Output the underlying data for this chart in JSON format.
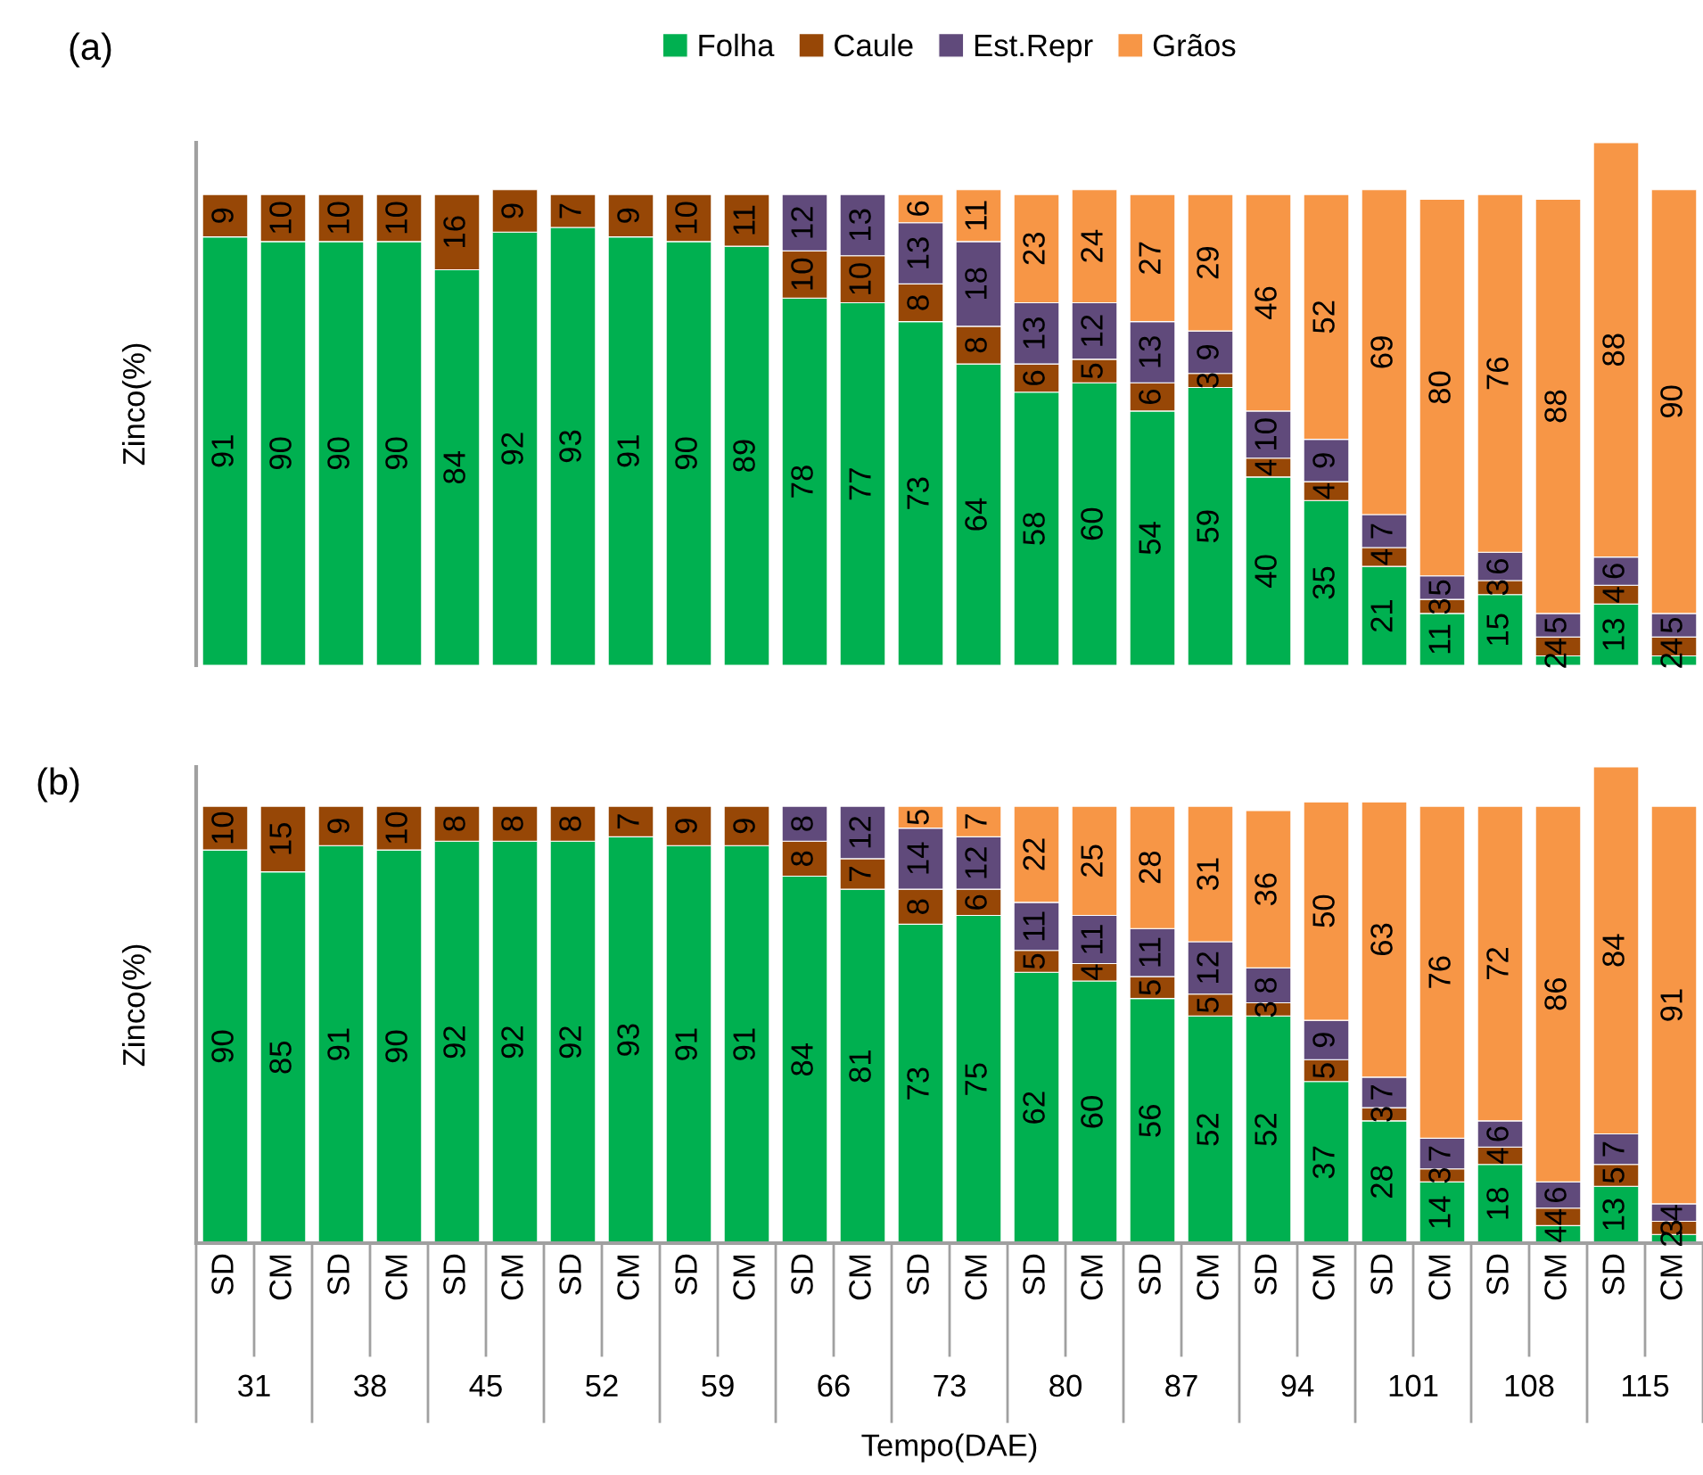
{
  "chart_data": [
    {
      "type": "bar",
      "title": "(a)",
      "ylabel": "Zinco(%)",
      "stacked": true,
      "data_labels": true,
      "legend": "top",
      "tick_labels": false,
      "grid": false,
      "ylim": [
        0,
        111
      ],
      "categories": [
        null,
        null,
        null,
        null,
        null,
        null,
        null,
        null,
        null,
        null,
        null,
        null,
        null,
        null,
        null,
        null,
        null,
        null,
        null,
        null,
        null,
        null,
        null,
        null,
        null,
        null
      ],
      "series": [
        {
          "name": "Folha",
          "color": "#00b050",
          "values": [
            91,
            90,
            90,
            90,
            84,
            92,
            93,
            91,
            90,
            89,
            78,
            77,
            73,
            64,
            58,
            60,
            54,
            59,
            40,
            35,
            21,
            11,
            15,
            2,
            13,
            2
          ]
        },
        {
          "name": "Caule",
          "color": "#974706",
          "values": [
            9,
            10,
            10,
            10,
            16,
            9,
            7,
            9,
            10,
            11,
            10,
            10,
            8,
            8,
            6,
            5,
            6,
            3,
            4,
            4,
            4,
            3,
            3,
            4,
            4,
            4
          ]
        },
        {
          "name": "Est.Repr",
          "color": "#604a7b",
          "values": [
            null,
            null,
            null,
            null,
            null,
            null,
            null,
            null,
            null,
            null,
            12,
            13,
            13,
            18,
            13,
            12,
            13,
            9,
            10,
            9,
            7,
            5,
            6,
            5,
            6,
            5
          ]
        },
        {
          "name": "Grãos",
          "color": "#f79646",
          "values": [
            null,
            null,
            null,
            null,
            null,
            null,
            null,
            null,
            null,
            null,
            null,
            null,
            6,
            11,
            23,
            24,
            27,
            29,
            46,
            52,
            69,
            80,
            76,
            88,
            88,
            90
          ]
        }
      ]
    },
    {
      "type": "bar",
      "title": "(b)",
      "ylabel": "Zinco(%)",
      "xlabel": "Tempo(DAE)",
      "stacked": true,
      "data_labels": true,
      "legend": false,
      "tick_labels": "x",
      "grid": false,
      "ylim": [
        0,
        109
      ],
      "categories": [
        "SD",
        "CM",
        "SD",
        "CM",
        "SD",
        "CM",
        "SD",
        "CM",
        "SD",
        "CM",
        "SD",
        "CM",
        "SD",
        "CM",
        "SD",
        "CM",
        "SD",
        "CM",
        "SD",
        "CM",
        "SD",
        "CM",
        "SD",
        "CM",
        "SD",
        "CM"
      ],
      "annotations": [
        "31",
        "38",
        "45",
        "52",
        "59",
        "66",
        "73",
        "80",
        "87",
        "94",
        "101",
        "108",
        "115"
      ],
      "series": [
        {
          "color": "#00b050",
          "values": [
            90,
            85,
            91,
            90,
            92,
            92,
            92,
            93,
            91,
            91,
            84,
            81,
            73,
            75,
            62,
            60,
            56,
            52,
            52,
            37,
            28,
            14,
            18,
            4,
            13,
            2
          ]
        },
        {
          "color": "#974706",
          "values": [
            10,
            15,
            9,
            10,
            8,
            8,
            8,
            7,
            9,
            9,
            8,
            7,
            8,
            6,
            5,
            4,
            5,
            5,
            3,
            5,
            3,
            3,
            4,
            4,
            5,
            3
          ]
        },
        {
          "color": "#604a7b",
          "values": [
            null,
            null,
            null,
            null,
            null,
            null,
            null,
            null,
            null,
            null,
            8,
            12,
            14,
            12,
            11,
            11,
            11,
            12,
            8,
            9,
            7,
            7,
            6,
            6,
            7,
            4
          ]
        },
        {
          "color": "#f79646",
          "values": [
            null,
            null,
            null,
            null,
            null,
            null,
            null,
            null,
            null,
            null,
            null,
            null,
            5,
            7,
            22,
            25,
            28,
            31,
            36,
            50,
            63,
            76,
            72,
            86,
            84,
            91
          ]
        }
      ]
    }
  ]
}
